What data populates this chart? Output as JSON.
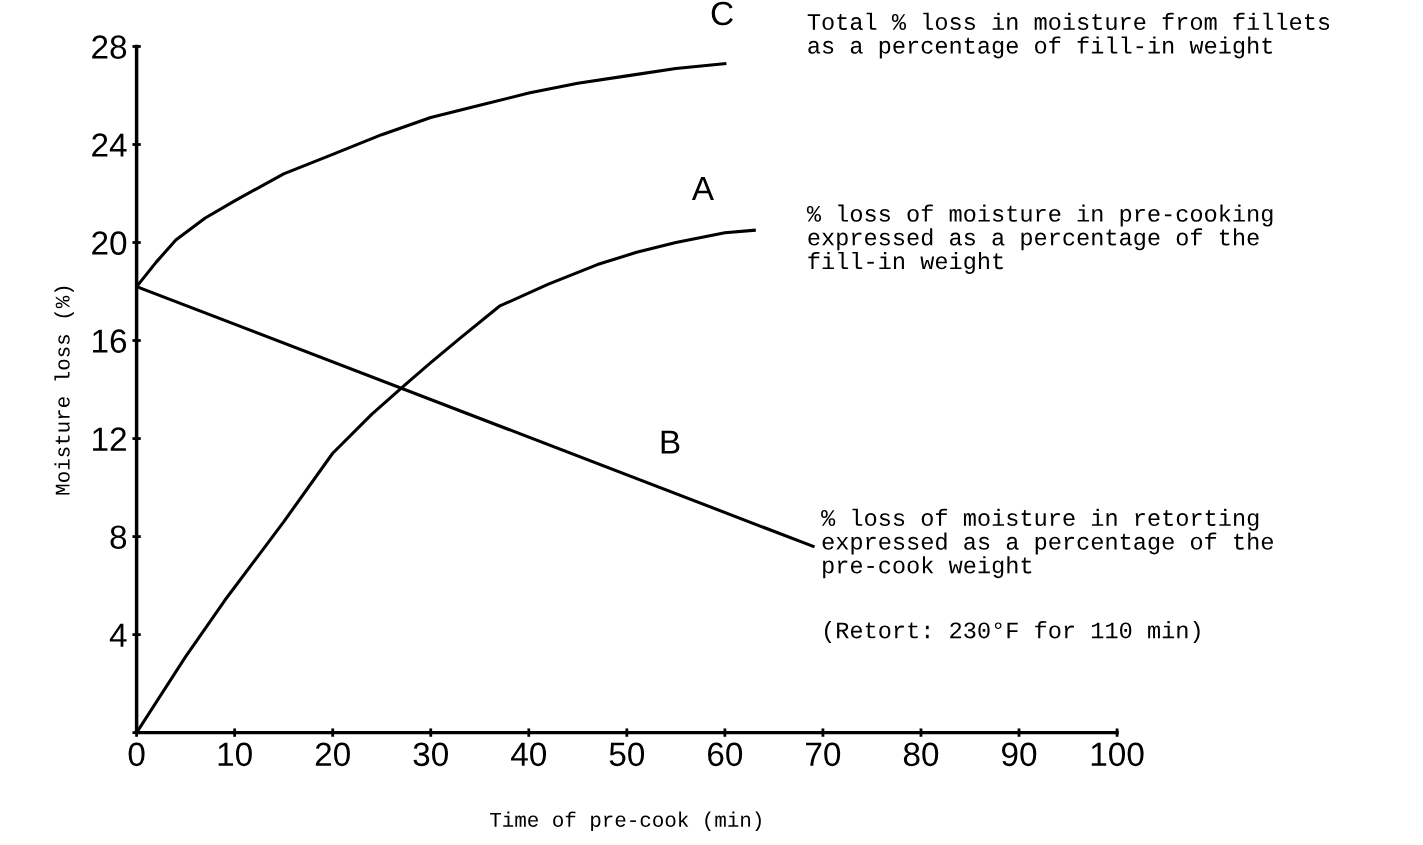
{
  "chart_data": {
    "type": "line",
    "xlabel": "Time of pre-cook (min)",
    "ylabel": "Moisture loss (%)",
    "series": [
      {
        "name": "C",
        "color": "#000000",
        "x": [
          0,
          2,
          4,
          7,
          10,
          15,
          20,
          25,
          30,
          35,
          40,
          45,
          50,
          55,
          60
        ],
        "values": [
          18.2,
          19.2,
          20.1,
          21.0,
          21.7,
          22.8,
          23.6,
          24.4,
          25.1,
          25.6,
          26.1,
          26.5,
          26.8,
          27.1,
          27.3
        ]
      },
      {
        "name": "A",
        "color": "#000000",
        "x": [
          0,
          5,
          9,
          15,
          20,
          24,
          27.4,
          30,
          33,
          37,
          42,
          47,
          51,
          55,
          60,
          63
        ],
        "values": [
          0,
          3.1,
          5.4,
          8.6,
          11.4,
          13.0,
          14.2,
          15.1,
          16.1,
          17.4,
          18.3,
          19.1,
          19.6,
          20.0,
          20.4,
          20.5
        ]
      },
      {
        "name": "B",
        "color": "#000000",
        "x": [
          0,
          69
        ],
        "values": [
          18.2,
          7.6
        ]
      }
    ],
    "annotations": [
      "Total % loss in moisture from fillets\nas a percentage of fill-in weight",
      "% loss of moisture in pre-cooking\nexpressed as a percentage of the\nfill-in weight",
      "% loss of moisture in retorting\nexpressed as a percentage of the\npre-cook weight",
      "(Retort: 230°F for 110 min)"
    ],
    "xlim": [
      0,
      100
    ],
    "ylim": [
      0,
      28
    ],
    "xticks": [
      0,
      10,
      20,
      30,
      40,
      50,
      60,
      70,
      80,
      90,
      100
    ],
    "yticks": [
      {
        "value": 0,
        "label": null
      },
      4,
      8,
      12,
      16,
      20,
      24,
      28
    ],
    "grid": false,
    "legend": false,
    "marker": "none",
    "line_style": "solid"
  }
}
